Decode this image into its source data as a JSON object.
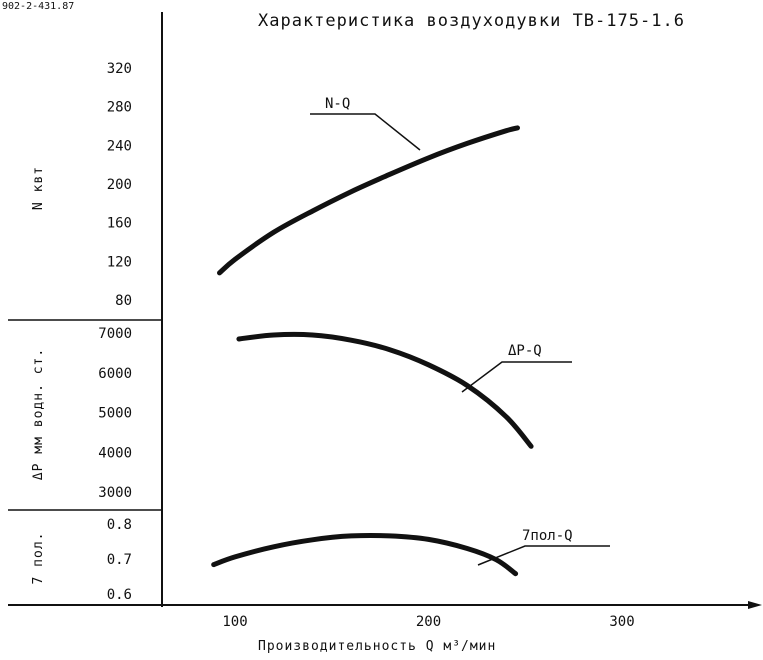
{
  "header": {
    "code": "902-2-431.87",
    "title": "Характеристика воздуходувки ТВ-175-1.6"
  },
  "chart_data": {
    "type": "line",
    "x": {
      "label": "Производительность Q м³/мин",
      "ticks": [
        100,
        200,
        300
      ],
      "range": [
        35,
        375
      ]
    },
    "panels": [
      {
        "id": "power",
        "ylabel": "N квт",
        "range": [
          60,
          350
        ],
        "ticks": [
          80,
          120,
          160,
          200,
          240,
          280,
          320
        ],
        "series": [
          {
            "name": "N-Q",
            "x": [
              92,
              100,
              120,
              140,
              160,
              180,
              200,
              220,
              240,
              246
            ],
            "y": [
              108,
              122,
              150,
              172,
              192,
              210,
              227,
              242,
              255,
              258
            ]
          }
        ]
      },
      {
        "id": "pressure",
        "ylabel": "ΔР мм водн. ст.",
        "range": [
          2600,
          7400
        ],
        "ticks": [
          "3000",
          "4000",
          "5000",
          "6000",
          "7000"
        ],
        "series": [
          {
            "name": "ΔР-Q",
            "x": [
              102,
              120,
              140,
              160,
              180,
              200,
              220,
              240,
              253
            ],
            "y": [
              6850,
              6950,
              6950,
              6820,
              6580,
              6200,
              5680,
              4900,
              4150
            ]
          }
        ]
      },
      {
        "id": "efficiency",
        "ylabel": "7 пол.",
        "range": [
          0.56,
          0.86
        ],
        "ticks": [
          "0.6",
          "0.7",
          "0.8"
        ],
        "series": [
          {
            "name": "7пол-Q",
            "x": [
              89,
              100,
              120,
              140,
              160,
              180,
              200,
              220,
              235,
              245
            ],
            "y": [
              0.684,
              0.706,
              0.735,
              0.755,
              0.766,
              0.766,
              0.756,
              0.73,
              0.698,
              0.658
            ]
          }
        ]
      }
    ]
  }
}
